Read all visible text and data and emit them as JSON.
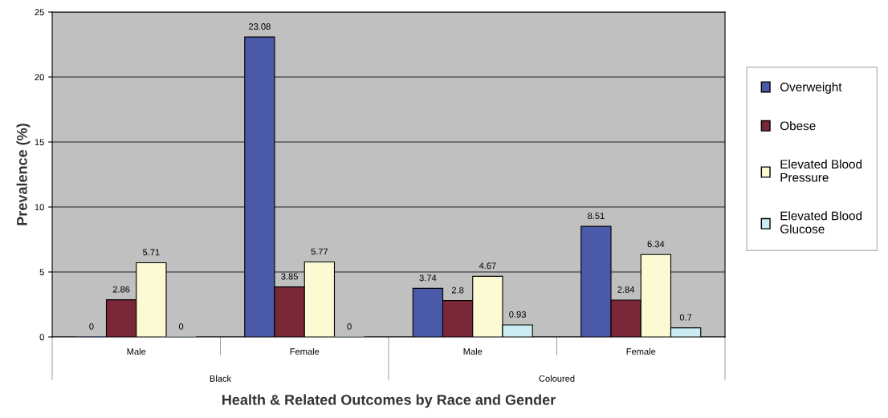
{
  "chart_data": {
    "type": "bar",
    "xlabel": "Health & Related Outcomes by Race and Gender",
    "ylabel": "Prevalence (%)",
    "categories": [
      "Male",
      "Female",
      "Male",
      "Female"
    ],
    "series": [
      {
        "name": "Overweight",
        "color": "#4a5aa8",
        "values": [
          0,
          23.08,
          3.74,
          8.51
        ]
      },
      {
        "name": "Obese",
        "color": "#7a2838",
        "values": [
          2.86,
          3.85,
          2.8,
          2.84
        ]
      },
      {
        "name": "Elevated Blood\nPressure",
        "color": "#fcfad2",
        "values": [
          5.71,
          5.77,
          4.67,
          6.34
        ]
      },
      {
        "name": "Elevated Blood\nGlucose",
        "color": "#ccecf4",
        "values": [
          0,
          0,
          0.93,
          0.7
        ]
      }
    ],
    "annotations": [
      "Black",
      "Coloured"
    ],
    "ylim": [
      0,
      25
    ],
    "yticks": [
      0,
      5,
      10,
      15,
      20,
      25
    ],
    "grid": "y",
    "legend": "right",
    "data_labels": true
  }
}
